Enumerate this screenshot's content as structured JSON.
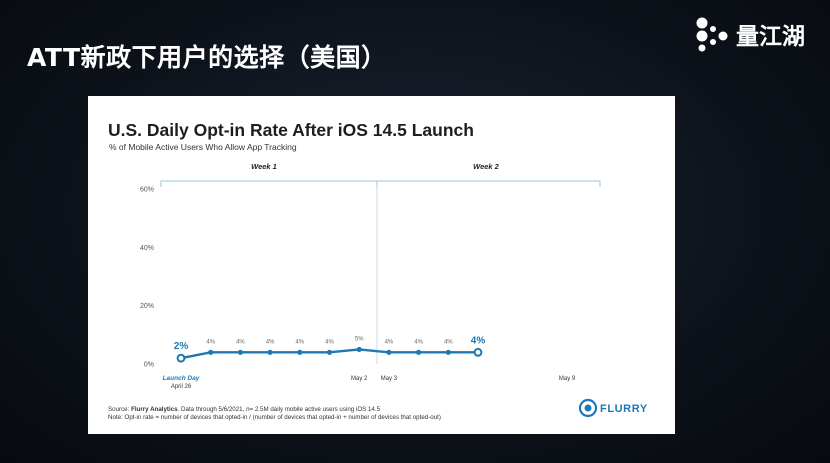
{
  "slide": {
    "title": "ATT新政下用户的选择（美国）",
    "logo_text": "量江湖",
    "logo_icon": "quantjianghu-logo-icon"
  },
  "chart_data": {
    "type": "line",
    "title": "U.S. Daily Opt-in Rate After iOS 14.5 Launch",
    "subtitle": "% of Mobile Active Users Who Allow App Tracking",
    "ylabel": "",
    "xlabel": "",
    "ylim": [
      0,
      60
    ],
    "yticks": [
      "0%",
      "20%",
      "40%",
      "60%"
    ],
    "ytick_values": [
      0,
      20,
      40,
      60
    ],
    "grid": false,
    "week_labels": [
      "Week 1",
      "Week 2"
    ],
    "x_tick_labels": [
      {
        "day": 0,
        "text": "Launch Day",
        "sub": "April 26"
      },
      {
        "day": 6,
        "text": "May 2"
      },
      {
        "day": 7,
        "text": "May 3"
      },
      {
        "day": 13,
        "text": "May 9"
      }
    ],
    "series": [
      {
        "values": [
          2,
          4,
          4,
          4,
          4,
          4,
          5,
          4,
          4,
          4,
          4
        ],
        "labels": [
          "2%",
          "4%",
          "4%",
          "4%",
          "4%",
          "4%",
          "5%",
          "4%",
          "4%",
          "4%",
          "4%"
        ],
        "color": "#1f78b4"
      }
    ],
    "source_label": "Source:",
    "source_name": "Flurry Analytics",
    "source_text": ". Data through 5/6/2021, n= 2.5M daily mobile active users using iOS 14.5",
    "note": "Note: Opt-in rate = number of devices that opted-in / (number of devices that opted-in + number of devices that opted-out)",
    "brand": "FLURRY",
    "brand_icon": "flurry-logo-icon"
  }
}
